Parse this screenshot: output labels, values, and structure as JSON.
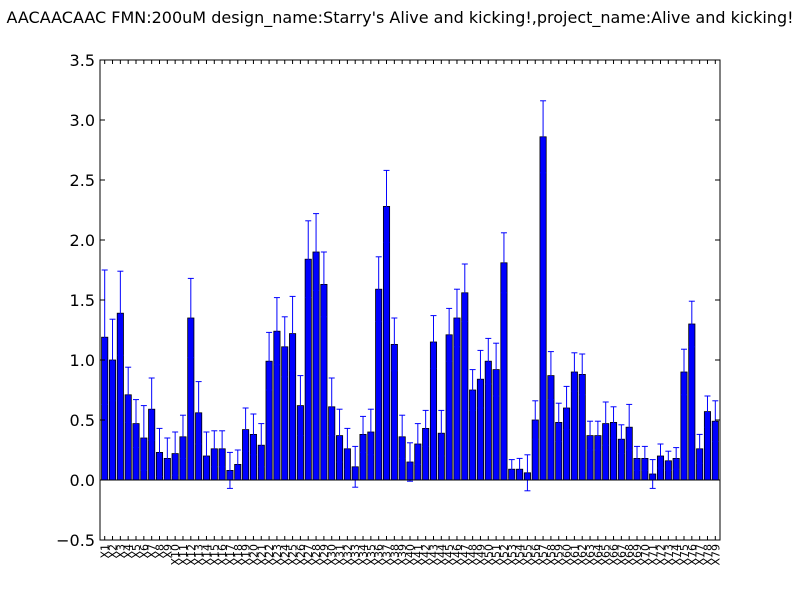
{
  "chart_data": {
    "type": "bar",
    "title": "AACAACAAC  FMN:200uM  design_name:Starry's Alive and kicking!,project_name:Alive and kicking!",
    "xlabel": "",
    "ylabel": "",
    "ylim": [
      -0.5,
      3.5
    ],
    "yticks": [
      "−0.5",
      "0.0",
      "0.5",
      "1.0",
      "1.5",
      "2.0",
      "2.5",
      "3.0",
      "3.5"
    ],
    "ytick_values": [
      -0.5,
      0.0,
      0.5,
      1.0,
      1.5,
      2.0,
      2.5,
      3.0,
      3.5
    ],
    "bar_color": "#0000ff",
    "error_color": "#0000ff",
    "categories": [
      "X1",
      "X2",
      "X3",
      "X4",
      "X5",
      "X6",
      "X7",
      "X8",
      "X9",
      "X10",
      "X11",
      "X12",
      "X13",
      "X14",
      "X15",
      "X16",
      "X17",
      "X18",
      "X19",
      "X20",
      "X21",
      "X22",
      "X23",
      "X24",
      "X25",
      "X26",
      "X27",
      "X28",
      "X29",
      "X30",
      "X31",
      "X32",
      "X33",
      "X34",
      "X35",
      "X36",
      "X37",
      "X38",
      "X39",
      "X40",
      "X41",
      "X42",
      "X43",
      "X44",
      "X45",
      "X46",
      "X47",
      "X48",
      "X49",
      "X50",
      "X51",
      "X52",
      "X53",
      "X54",
      "X55",
      "X56",
      "X57",
      "X58",
      "X59",
      "X60",
      "X61",
      "X62",
      "X63",
      "X64",
      "X65",
      "X66",
      "X67",
      "X68",
      "X69",
      "X70",
      "X71",
      "X72",
      "X73",
      "X74",
      "X75",
      "X76",
      "X77",
      "X78",
      "X79"
    ],
    "values": [
      1.19,
      1.0,
      1.39,
      0.71,
      0.47,
      0.35,
      0.59,
      0.23,
      0.18,
      0.22,
      0.36,
      1.35,
      0.56,
      0.2,
      0.26,
      0.26,
      0.08,
      0.13,
      0.42,
      0.38,
      0.29,
      0.99,
      1.24,
      1.11,
      1.22,
      0.62,
      1.84,
      1.9,
      1.63,
      0.61,
      0.37,
      0.26,
      0.11,
      0.38,
      0.4,
      1.59,
      2.28,
      1.13,
      0.36,
      0.15,
      0.3,
      0.43,
      1.15,
      0.39,
      1.21,
      1.35,
      1.56,
      0.75,
      0.84,
      0.99,
      0.92,
      1.81,
      0.09,
      0.09,
      0.06,
      0.5,
      2.86,
      0.87,
      0.48,
      0.6,
      0.9,
      0.88,
      0.37,
      0.37,
      0.47,
      0.48,
      0.34,
      0.44,
      0.18,
      0.18,
      0.05,
      0.2,
      0.16,
      0.18,
      0.9,
      1.3,
      0.26,
      0.57,
      0.49
    ],
    "errors": [
      0.56,
      0.34,
      0.35,
      0.23,
      0.2,
      0.27,
      0.26,
      0.2,
      0.17,
      0.18,
      0.18,
      0.33,
      0.26,
      0.2,
      0.15,
      0.15,
      0.15,
      0.12,
      0.18,
      0.17,
      0.18,
      0.24,
      0.28,
      0.25,
      0.31,
      0.25,
      0.32,
      0.32,
      0.27,
      0.24,
      0.22,
      0.17,
      0.17,
      0.15,
      0.19,
      0.27,
      0.3,
      0.22,
      0.18,
      0.16,
      0.17,
      0.15,
      0.22,
      0.19,
      0.22,
      0.24,
      0.24,
      0.17,
      0.24,
      0.19,
      0.22,
      0.25,
      0.08,
      0.09,
      0.15,
      0.16,
      0.3,
      0.2,
      0.16,
      0.18,
      0.16,
      0.17,
      0.12,
      0.12,
      0.18,
      0.13,
      0.12,
      0.19,
      0.1,
      0.1,
      0.12,
      0.1,
      0.08,
      0.09,
      0.19,
      0.19,
      0.12,
      0.13,
      0.17
    ]
  }
}
